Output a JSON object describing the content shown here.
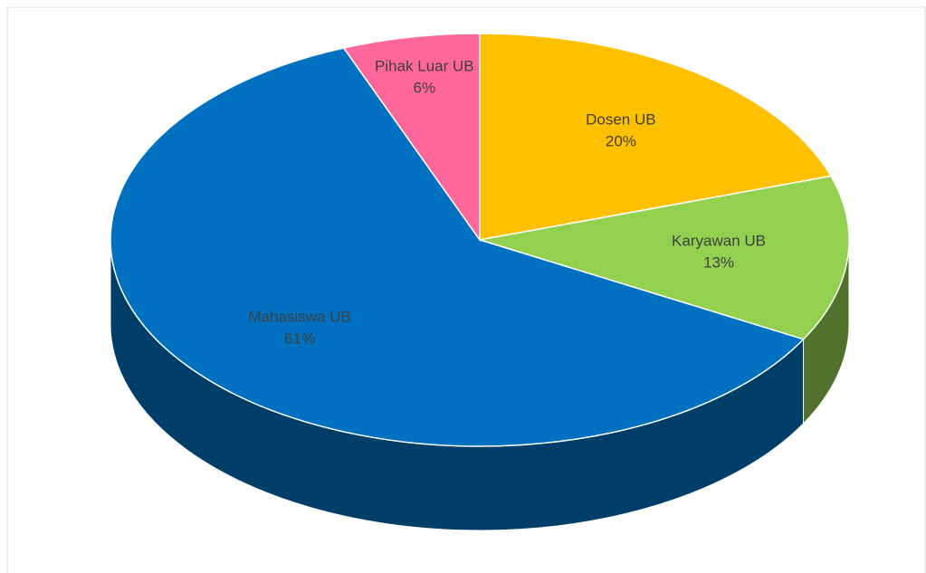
{
  "chart_data": {
    "type": "pie3d",
    "categories": [
      "Dosen UB",
      "Karyawan UB",
      "Mahasiswa UB",
      "Pihak Luar UB"
    ],
    "values": [
      20,
      13,
      61,
      6
    ],
    "value_labels": [
      "20%",
      "13%",
      "61%",
      "6%"
    ],
    "colors": [
      "#ffc000",
      "#92d050",
      "#0070c0",
      "#ff6699"
    ]
  }
}
